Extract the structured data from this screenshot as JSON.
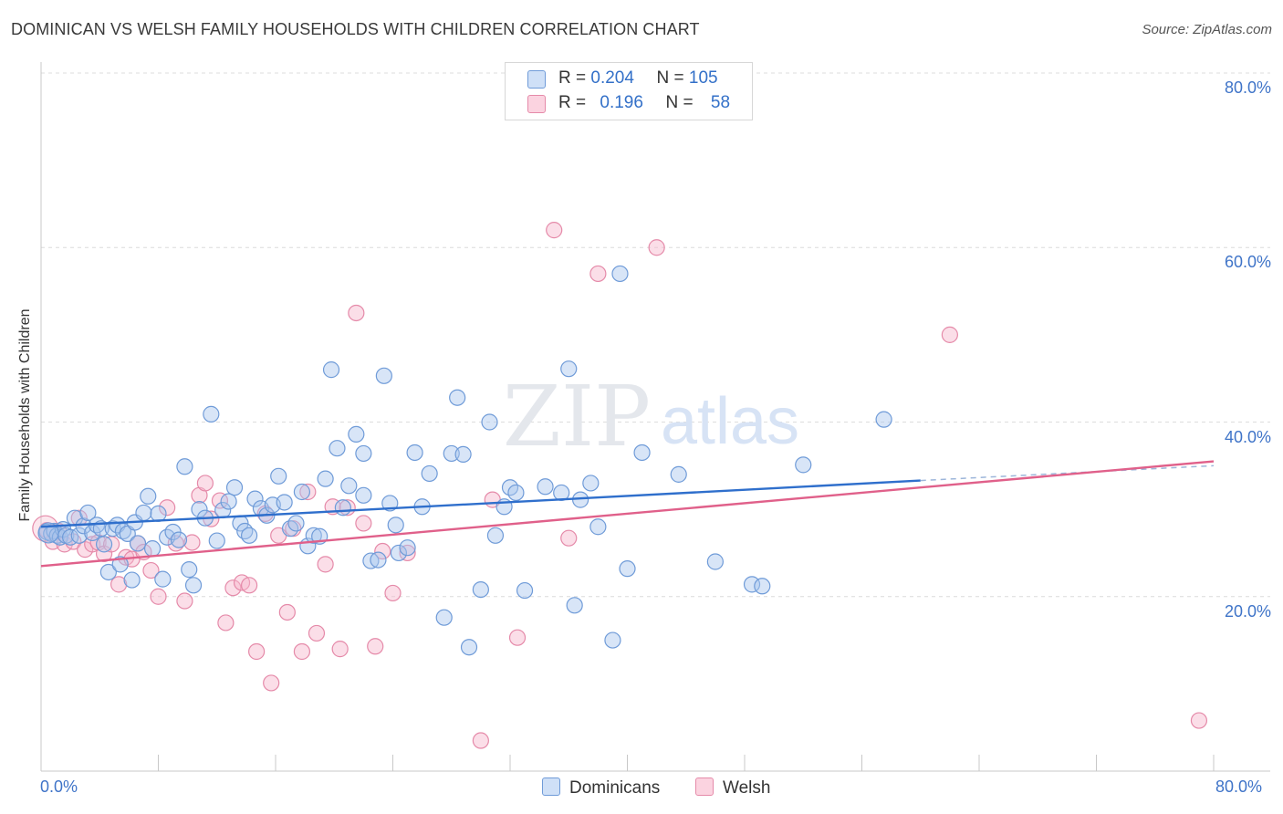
{
  "header": {
    "title": "DOMINICAN VS WELSH FAMILY HOUSEHOLDS WITH CHILDREN CORRELATION CHART",
    "source": "Source: ZipAtlas.com"
  },
  "watermark": {
    "zip": "ZIP",
    "atlas": "atlas"
  },
  "legend": {
    "rows": [
      {
        "r_label": "R =",
        "r_value": "0.204",
        "n_label": "N =",
        "n_value": "105",
        "color": "#a8c6ee"
      },
      {
        "r_label": "R =",
        "r_value": "0.196",
        "n_label": "N =",
        "n_value": "58",
        "color": "#f6b6cb"
      }
    ]
  },
  "bottom_legend": {
    "dominicans": "Dominicans",
    "welsh": "Welsh"
  },
  "chart_data": {
    "type": "scatter",
    "title": "DOMINICAN VS WELSH FAMILY HOUSEHOLDS WITH CHILDREN CORRELATION CHART",
    "xlabel": "",
    "ylabel": "Family Households with Children",
    "xlim": [
      0,
      80
    ],
    "ylim": [
      0,
      80
    ],
    "x_tick_labels": {
      "min": "0.0%",
      "max": "80.0%"
    },
    "y_tick_labels": [
      "20.0%",
      "40.0%",
      "60.0%",
      "80.0%"
    ],
    "y_ticks": [
      20,
      40,
      60,
      80
    ],
    "grid": "horizontal-dashed",
    "legend_position": "top-center",
    "colors": {
      "dominicans_fill": "#a8c6ee",
      "dominicans_stroke": "#6f9bd8",
      "dominicans_line": "#2f6fcc",
      "welsh_fill": "#f6b6cb",
      "welsh_stroke": "#e58aa9",
      "welsh_line": "#e0608a",
      "axis_label": "#3f74c8"
    },
    "series": [
      {
        "name": "Dominicans",
        "r": 0.204,
        "n": 105,
        "trend": {
          "x0": 0,
          "y0": 28,
          "x1": 60,
          "y1": 33.3,
          "dash_to_x": 80,
          "dash_to_y": 35.0
        },
        "points": [
          [
            0.4,
            27.4
          ],
          [
            0.7,
            27.2
          ],
          [
            0.9,
            27.5
          ],
          [
            1.1,
            27.0
          ],
          [
            1.3,
            26.8
          ],
          [
            1.5,
            27.7
          ],
          [
            1.7,
            27.0
          ],
          [
            2.0,
            26.8
          ],
          [
            2.3,
            29.0
          ],
          [
            2.6,
            27.0
          ],
          [
            2.9,
            28.1
          ],
          [
            3.2,
            29.6
          ],
          [
            3.5,
            27.3
          ],
          [
            3.8,
            28.2
          ],
          [
            4.1,
            27.8
          ],
          [
            4.3,
            26.0
          ],
          [
            4.6,
            22.8
          ],
          [
            4.9,
            27.8
          ],
          [
            5.2,
            28.2
          ],
          [
            5.4,
            23.7
          ],
          [
            5.6,
            27.5
          ],
          [
            5.9,
            27.2
          ],
          [
            6.2,
            21.9
          ],
          [
            6.4,
            28.5
          ],
          [
            6.6,
            26.1
          ],
          [
            7.0,
            29.6
          ],
          [
            7.3,
            31.5
          ],
          [
            7.6,
            25.5
          ],
          [
            8.0,
            29.5
          ],
          [
            8.3,
            22.0
          ],
          [
            8.6,
            26.8
          ],
          [
            9.0,
            27.4
          ],
          [
            9.4,
            26.5
          ],
          [
            9.8,
            34.9
          ],
          [
            10.1,
            23.1
          ],
          [
            10.4,
            21.3
          ],
          [
            10.8,
            30.0
          ],
          [
            11.2,
            29.0
          ],
          [
            11.6,
            40.9
          ],
          [
            12.0,
            26.4
          ],
          [
            12.4,
            29.9
          ],
          [
            12.8,
            30.9
          ],
          [
            13.2,
            32.5
          ],
          [
            13.6,
            28.4
          ],
          [
            13.9,
            27.5
          ],
          [
            14.2,
            27.0
          ],
          [
            14.6,
            31.2
          ],
          [
            15.0,
            30.1
          ],
          [
            15.4,
            29.3
          ],
          [
            15.8,
            30.5
          ],
          [
            16.2,
            33.8
          ],
          [
            16.6,
            30.8
          ],
          [
            17.0,
            27.8
          ],
          [
            17.4,
            28.4
          ],
          [
            17.8,
            32.0
          ],
          [
            18.2,
            25.8
          ],
          [
            18.6,
            27.0
          ],
          [
            19.0,
            26.9
          ],
          [
            19.4,
            33.5
          ],
          [
            19.8,
            46.0
          ],
          [
            20.2,
            37.0
          ],
          [
            20.6,
            30.2
          ],
          [
            21.0,
            32.7
          ],
          [
            21.5,
            38.6
          ],
          [
            22.0,
            31.6
          ],
          [
            22.5,
            24.1
          ],
          [
            23.0,
            24.2
          ],
          [
            23.4,
            45.3
          ],
          [
            23.8,
            30.7
          ],
          [
            24.4,
            25.0
          ],
          [
            25.0,
            25.6
          ],
          [
            25.5,
            36.5
          ],
          [
            26.0,
            30.3
          ],
          [
            26.5,
            34.1
          ],
          [
            27.5,
            17.6
          ],
          [
            28.0,
            36.4
          ],
          [
            28.4,
            42.8
          ],
          [
            28.8,
            36.3
          ],
          [
            29.2,
            14.2
          ],
          [
            30.0,
            20.8
          ],
          [
            30.6,
            40.0
          ],
          [
            31.0,
            27.0
          ],
          [
            31.6,
            30.3
          ],
          [
            32.0,
            32.5
          ],
          [
            32.4,
            31.9
          ],
          [
            33.0,
            20.7
          ],
          [
            34.4,
            32.6
          ],
          [
            35.5,
            31.9
          ],
          [
            36.0,
            46.1
          ],
          [
            36.4,
            19.0
          ],
          [
            36.8,
            31.1
          ],
          [
            37.5,
            33.0
          ],
          [
            38.0,
            28.0
          ],
          [
            39.0,
            15.0
          ],
          [
            39.5,
            57.0
          ],
          [
            40.0,
            23.2
          ],
          [
            41.0,
            36.5
          ],
          [
            43.5,
            34.0
          ],
          [
            46.0,
            24.0
          ],
          [
            48.5,
            21.4
          ],
          [
            49.2,
            21.2
          ],
          [
            52.0,
            35.1
          ],
          [
            57.5,
            40.3
          ],
          [
            22.0,
            36.4
          ],
          [
            24.2,
            28.2
          ]
        ]
      },
      {
        "name": "Welsh",
        "r": 0.196,
        "n": 58,
        "trend": {
          "x0": 0,
          "y0": 23.5,
          "x1": 80,
          "y1": 35.5
        },
        "points": [
          [
            0.4,
            27.6
          ],
          [
            0.8,
            26.3
          ],
          [
            1.2,
            27.5
          ],
          [
            1.6,
            26.0
          ],
          [
            2.2,
            26.3
          ],
          [
            2.6,
            29.0
          ],
          [
            3.0,
            25.4
          ],
          [
            3.5,
            26.0
          ],
          [
            3.9,
            26.2
          ],
          [
            4.3,
            24.9
          ],
          [
            4.8,
            26.0
          ],
          [
            5.3,
            21.4
          ],
          [
            5.8,
            24.5
          ],
          [
            6.2,
            24.3
          ],
          [
            6.6,
            26.1
          ],
          [
            7.0,
            25.1
          ],
          [
            7.5,
            23.0
          ],
          [
            8.0,
            20.0
          ],
          [
            8.6,
            30.2
          ],
          [
            9.2,
            26.1
          ],
          [
            9.8,
            19.5
          ],
          [
            10.3,
            26.2
          ],
          [
            10.8,
            31.6
          ],
          [
            11.2,
            33.0
          ],
          [
            11.6,
            28.9
          ],
          [
            12.2,
            31.0
          ],
          [
            12.6,
            17.0
          ],
          [
            13.1,
            21.0
          ],
          [
            13.7,
            21.6
          ],
          [
            14.2,
            21.3
          ],
          [
            14.7,
            13.7
          ],
          [
            15.3,
            29.5
          ],
          [
            15.7,
            10.1
          ],
          [
            16.2,
            27.0
          ],
          [
            16.8,
            18.2
          ],
          [
            17.2,
            27.8
          ],
          [
            17.8,
            13.7
          ],
          [
            18.2,
            32.0
          ],
          [
            18.8,
            15.8
          ],
          [
            19.4,
            23.7
          ],
          [
            19.9,
            30.3
          ],
          [
            20.4,
            14.0
          ],
          [
            20.9,
            30.2
          ],
          [
            21.5,
            52.5
          ],
          [
            22.0,
            28.4
          ],
          [
            22.8,
            14.3
          ],
          [
            23.3,
            25.2
          ],
          [
            24.0,
            20.4
          ],
          [
            25.0,
            25.0
          ],
          [
            30.0,
            3.5
          ],
          [
            30.8,
            31.1
          ],
          [
            32.5,
            15.3
          ],
          [
            35.0,
            62.0
          ],
          [
            36.0,
            26.7
          ],
          [
            38.0,
            57.0
          ],
          [
            42.0,
            60.0
          ],
          [
            62.0,
            50.0
          ],
          [
            79.0,
            5.8
          ]
        ]
      }
    ]
  }
}
